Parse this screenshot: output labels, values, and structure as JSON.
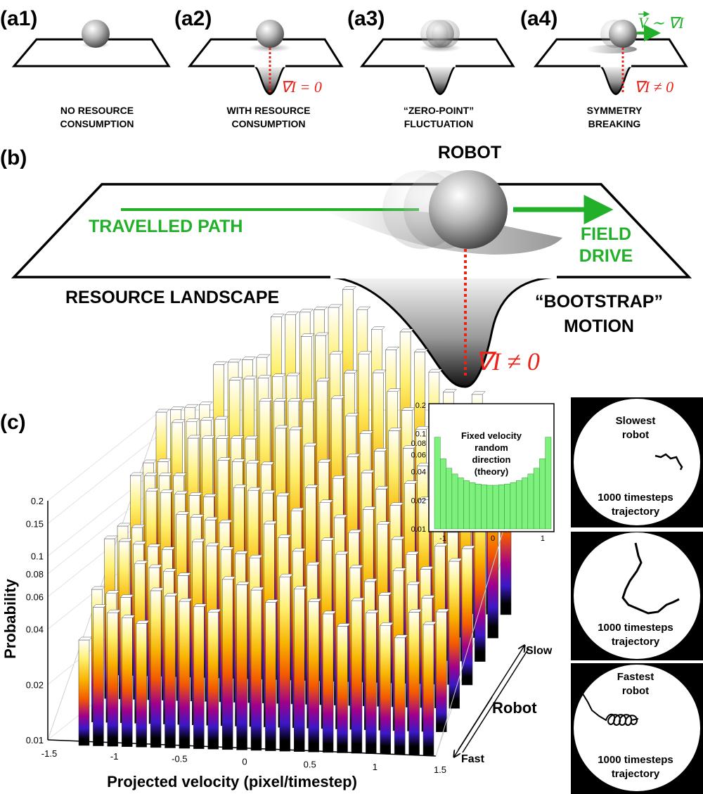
{
  "panels": {
    "a1": {
      "label": "(a1)",
      "caption": [
        "NO RESOURCE",
        "CONSUMPTION"
      ]
    },
    "a2": {
      "label": "(a2)",
      "caption": [
        "WITH RESOURCE",
        "CONSUMPTION"
      ],
      "formula": "∇I = 0"
    },
    "a3": {
      "label": "(a3)",
      "caption": [
        "“ZERO-POINT”",
        "FLUCTUATION"
      ]
    },
    "a4": {
      "label": "(a4)",
      "caption": [
        "SYMMETRY",
        "BREAKING"
      ],
      "formula": "∇I ≠ 0",
      "velocity": "V ∼ ∇I"
    }
  },
  "panel_b": {
    "label": "(b)",
    "robot": "ROBOT",
    "path": "TRAVELLED PATH",
    "drive": [
      "FIELD",
      "DRIVE"
    ],
    "landscape": "RESOURCE LANDSCAPE",
    "bootstrap": [
      "“BOOTSTRAP”",
      "MOTION"
    ],
    "formula": "∇I ≠ 0"
  },
  "panel_c": {
    "label": "(c)",
    "ylabel": "Probability",
    "xlabel": "Projected velocity (pixel/timestep)",
    "xticks": [
      "-1.5",
      "-1",
      "-0.5",
      "0",
      "0.5",
      "1",
      "1.5"
    ],
    "yticks": [
      "0.01",
      "0.02",
      "0.04",
      "0.06",
      "0.08",
      "0.1",
      "0.15",
      "0.2"
    ],
    "robot_axis": "Robot",
    "slow": "Slow",
    "fast": "Fast"
  },
  "inset": {
    "title": [
      "Fixed velocity",
      "random",
      "direction",
      "(theory)"
    ],
    "yticks": [
      "0.01",
      "0.02",
      "0.04",
      "0.06",
      "0.08",
      "0.1",
      "0.2"
    ],
    "xticks": [
      "-1",
      "0",
      "1"
    ]
  },
  "trajectories": [
    {
      "title": [
        "Slowest",
        "robot"
      ],
      "caption": [
        "1000 timesteps",
        "trajectory"
      ]
    },
    {
      "title": [],
      "caption": [
        "1000 timesteps",
        "trajectory"
      ]
    },
    {
      "title": [
        "Fastest",
        "robot"
      ],
      "caption": [
        "1000 timesteps",
        "trajectory"
      ]
    }
  ],
  "colors": {
    "green": "#22b02a",
    "red": "#e8231a",
    "black": "#000000"
  }
}
